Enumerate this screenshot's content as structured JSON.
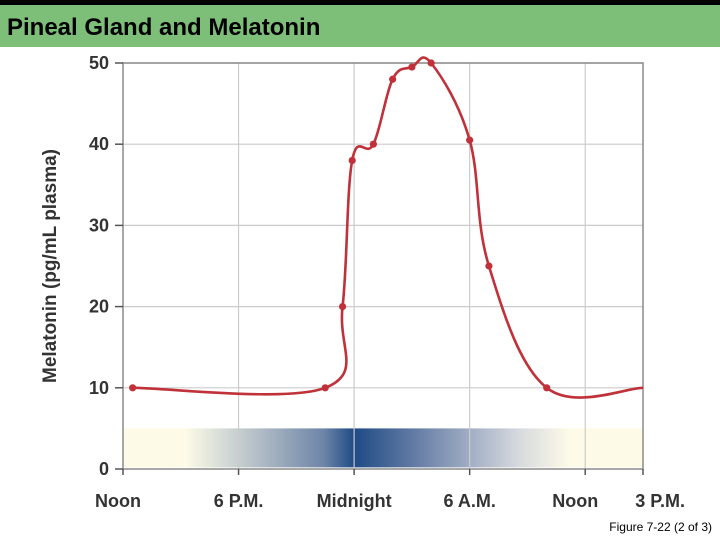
{
  "header": {
    "title": "Pineal Gland and Melatonin",
    "band_color": "#7dbf78",
    "bar_color": "#000000"
  },
  "caption": "Figure 7-22 (2 of 3)",
  "chart_data": {
    "type": "line",
    "title": "",
    "xlabel": "",
    "ylabel": "Melatonin (pg/mL plasma)",
    "ylim": [
      0,
      50
    ],
    "yticks": [
      0,
      10,
      20,
      30,
      40,
      50
    ],
    "x_unit": "hours after noon",
    "xlim": [
      0,
      27
    ],
    "xtick_values": [
      0,
      6,
      12,
      18,
      24,
      27
    ],
    "xtick_labels": [
      "Noon",
      "6 P.M.",
      "Midnight",
      "6 A.M.",
      "Noon",
      "3 P.M."
    ],
    "grid": true,
    "series": [
      {
        "name": "",
        "color": "#c0313a",
        "x": [
          0.5,
          10.5,
          11.4,
          11.9,
          13.0,
          14.0,
          15.0,
          16.0,
          18.0,
          19.0,
          22.0
        ],
        "y": [
          10,
          10,
          20,
          38,
          40,
          48,
          49.5,
          50,
          40.5,
          25,
          10
        ]
      }
    ],
    "light_dark_bar": {
      "y_range": [
        0.2,
        5
      ],
      "light_color": "#fdfbe8",
      "dark_color": "#1f4b85",
      "darkest_x": 12
    }
  }
}
